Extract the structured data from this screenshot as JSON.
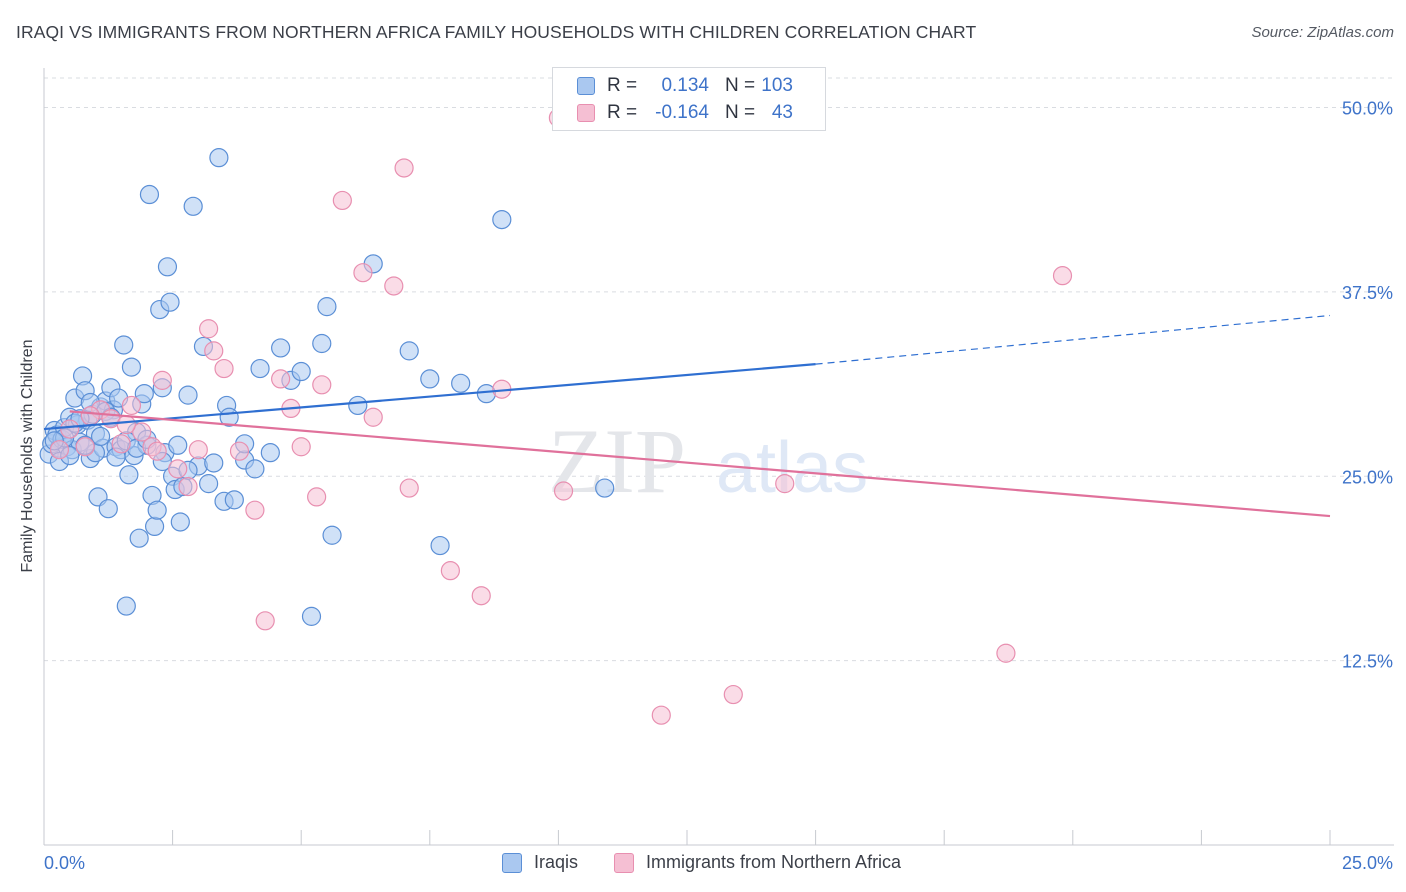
{
  "title": "IRAQI VS IMMIGRANTS FROM NORTHERN AFRICA FAMILY HOUSEHOLDS WITH CHILDREN CORRELATION CHART",
  "source": "Source: ZipAtlas.com",
  "watermark": {
    "zip": "ZIP",
    "atlas": "atlas"
  },
  "legend": {
    "series": [
      {
        "r_label": "R =",
        "r_value": "0.134",
        "n_label": "N =",
        "n_value": "103"
      },
      {
        "r_label": "R =",
        "r_value": "-0.164",
        "n_label": "N =",
        "n_value": "43"
      }
    ]
  },
  "colors": {
    "iraqi_fill": "#aac8f0",
    "iraqi_stroke": "#5b8fd6",
    "iraqi_line": "#2f6fd1",
    "nafrica_fill": "#f5bfd3",
    "nafrica_stroke": "#e88fb0",
    "nafrica_line": "#e0719b",
    "tick_label": "#3e73c9",
    "grid": "#d9dce1"
  },
  "chart_data": {
    "type": "scatter",
    "title": "IRAQI VS IMMIGRANTS FROM NORTHERN AFRICA FAMILY HOUSEHOLDS WITH CHILDREN CORRELATION CHART",
    "xlabel": "",
    "ylabel": "Family Households with Children",
    "xlim": [
      0,
      25
    ],
    "ylim": [
      0,
      52
    ],
    "x_tick_labels": [
      "0.0%",
      "25.0%"
    ],
    "y_ticks": [
      12.5,
      25.0,
      37.5,
      50.0
    ],
    "y_tick_labels": [
      "12.5%",
      "25.0%",
      "37.5%",
      "50.0%"
    ],
    "grid": "horizontal dashed",
    "legend_position": "bottom",
    "series": [
      {
        "name": "Iraqis",
        "r": 0.134,
        "n": 103,
        "trend": {
          "x0": 0,
          "y0": 28.2,
          "x1": 15.0,
          "y1": 32.6,
          "dash_to_x": 25.0,
          "dash_to_y": 35.9
        },
        "points": [
          [
            0.1,
            26.5
          ],
          [
            0.15,
            27.2
          ],
          [
            0.2,
            28.1
          ],
          [
            0.25,
            27.8
          ],
          [
            0.3,
            26.9
          ],
          [
            0.35,
            27.5
          ],
          [
            0.4,
            28.3
          ],
          [
            0.45,
            27.0
          ],
          [
            0.5,
            29.0
          ],
          [
            0.55,
            26.8
          ],
          [
            0.6,
            30.3
          ],
          [
            0.65,
            28.5
          ],
          [
            0.7,
            27.3
          ],
          [
            0.75,
            31.8
          ],
          [
            0.8,
            30.8
          ],
          [
            0.85,
            28.8
          ],
          [
            0.9,
            26.2
          ],
          [
            0.95,
            29.2
          ],
          [
            1.0,
            27.9
          ],
          [
            1.05,
            23.6
          ],
          [
            1.1,
            29.7
          ],
          [
            1.15,
            26.9
          ],
          [
            1.2,
            30.1
          ],
          [
            1.25,
            22.8
          ],
          [
            1.3,
            31.0
          ],
          [
            1.35,
            29.5
          ],
          [
            1.4,
            27.0
          ],
          [
            1.45,
            30.3
          ],
          [
            1.5,
            26.8
          ],
          [
            1.55,
            33.9
          ],
          [
            1.6,
            16.2
          ],
          [
            1.65,
            25.1
          ],
          [
            1.7,
            32.4
          ],
          [
            1.75,
            26.4
          ],
          [
            1.8,
            28.0
          ],
          [
            1.85,
            20.8
          ],
          [
            1.9,
            29.9
          ],
          [
            1.95,
            30.6
          ],
          [
            2.0,
            27.1
          ],
          [
            2.05,
            44.1
          ],
          [
            2.1,
            23.7
          ],
          [
            2.15,
            21.6
          ],
          [
            2.2,
            22.7
          ],
          [
            2.25,
            36.3
          ],
          [
            2.3,
            31.0
          ],
          [
            2.35,
            26.6
          ],
          [
            2.4,
            39.2
          ],
          [
            2.45,
            36.8
          ],
          [
            2.5,
            25.0
          ],
          [
            2.55,
            24.1
          ],
          [
            2.6,
            27.1
          ],
          [
            2.65,
            21.9
          ],
          [
            2.7,
            24.3
          ],
          [
            2.8,
            30.5
          ],
          [
            2.9,
            43.3
          ],
          [
            3.0,
            25.7
          ],
          [
            3.1,
            33.8
          ],
          [
            3.2,
            24.5
          ],
          [
            3.3,
            25.9
          ],
          [
            3.4,
            46.6
          ],
          [
            3.5,
            23.3
          ],
          [
            3.55,
            29.8
          ],
          [
            3.6,
            29.0
          ],
          [
            3.7,
            23.4
          ],
          [
            3.9,
            26.1
          ],
          [
            4.1,
            25.5
          ],
          [
            4.2,
            32.3
          ],
          [
            4.4,
            26.6
          ],
          [
            4.6,
            33.7
          ],
          [
            4.8,
            31.5
          ],
          [
            5.0,
            32.1
          ],
          [
            5.2,
            15.5
          ],
          [
            5.4,
            34.0
          ],
          [
            5.5,
            36.5
          ],
          [
            5.6,
            21.0
          ],
          [
            6.1,
            29.8
          ],
          [
            6.4,
            39.4
          ],
          [
            7.1,
            33.5
          ],
          [
            7.5,
            31.6
          ],
          [
            7.7,
            20.3
          ],
          [
            8.1,
            31.3
          ],
          [
            8.6,
            30.6
          ],
          [
            8.9,
            42.4
          ],
          [
            10.9,
            24.2
          ],
          [
            0.3,
            26.0
          ],
          [
            0.4,
            27.6
          ],
          [
            0.6,
            28.6
          ],
          [
            0.9,
            30.0
          ],
          [
            1.0,
            26.6
          ],
          [
            1.2,
            29.4
          ],
          [
            1.4,
            26.3
          ],
          [
            1.6,
            27.4
          ],
          [
            1.8,
            26.9
          ],
          [
            2.0,
            27.5
          ],
          [
            0.2,
            27.4
          ],
          [
            0.5,
            26.4
          ],
          [
            0.7,
            28.9
          ],
          [
            1.1,
            27.7
          ],
          [
            1.3,
            29.0
          ],
          [
            0.8,
            27.1
          ],
          [
            2.8,
            25.4
          ],
          [
            3.9,
            27.2
          ],
          [
            2.3,
            26.0
          ]
        ]
      },
      {
        "name": "Immigrants from Northern Africa",
        "r": -0.164,
        "n": 43,
        "trend": {
          "x0": 0.5,
          "y0": 29.4,
          "x1": 25.0,
          "y1": 22.3
        },
        "points": [
          [
            0.3,
            26.8
          ],
          [
            0.5,
            28.2
          ],
          [
            0.8,
            27.0
          ],
          [
            1.1,
            29.5
          ],
          [
            1.3,
            28.9
          ],
          [
            1.5,
            27.2
          ],
          [
            1.7,
            29.8
          ],
          [
            1.9,
            28.0
          ],
          [
            2.1,
            27.0
          ],
          [
            2.3,
            31.5
          ],
          [
            2.6,
            25.5
          ],
          [
            2.8,
            24.3
          ],
          [
            3.0,
            26.8
          ],
          [
            3.2,
            35.0
          ],
          [
            3.3,
            33.5
          ],
          [
            3.5,
            32.3
          ],
          [
            3.8,
            26.7
          ],
          [
            4.1,
            22.7
          ],
          [
            4.3,
            15.2
          ],
          [
            4.6,
            31.6
          ],
          [
            4.8,
            29.6
          ],
          [
            5.0,
            27.0
          ],
          [
            5.3,
            23.6
          ],
          [
            5.4,
            31.2
          ],
          [
            5.8,
            43.7
          ],
          [
            6.2,
            38.8
          ],
          [
            6.4,
            29.0
          ],
          [
            6.8,
            37.9
          ],
          [
            7.0,
            45.9
          ],
          [
            7.1,
            24.2
          ],
          [
            7.9,
            18.6
          ],
          [
            8.5,
            16.9
          ],
          [
            8.9,
            30.9
          ],
          [
            10.1,
            24.0
          ],
          [
            10.0,
            49.3
          ],
          [
            12.0,
            8.8
          ],
          [
            13.4,
            10.2
          ],
          [
            14.4,
            24.5
          ],
          [
            18.7,
            13.0
          ],
          [
            19.8,
            38.6
          ],
          [
            2.2,
            26.7
          ],
          [
            1.6,
            28.5
          ],
          [
            0.9,
            29.1
          ]
        ]
      }
    ]
  }
}
